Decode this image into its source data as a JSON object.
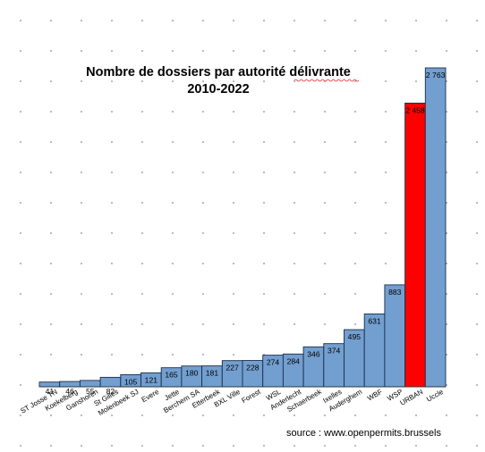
{
  "chart_data": {
    "type": "bar",
    "title": "Nombre de dossiers par autorité délivrante",
    "subtitle": "2010-2022",
    "categories": [
      "ST Josse TN",
      "Koekelberg",
      "Ganshoren",
      "St Gilles",
      "Molenbeek SJ",
      "Evere",
      "Jette",
      "Berchem SA",
      "Etterbeek",
      "BXL Ville",
      "Forest",
      "WSL",
      "Anderlecht",
      "Schaerbeek",
      "Ixelles",
      "Auderghem",
      "WBF",
      "WSP",
      "URBAN",
      "Uccle"
    ],
    "values": [
      41,
      46,
      55,
      82,
      105,
      121,
      165,
      180,
      181,
      227,
      228,
      274,
      284,
      346,
      374,
      495,
      631,
      883,
      2458,
      2763
    ],
    "value_labels": [
      "41",
      "46",
      "55",
      "82",
      "105",
      "121",
      "165",
      "180",
      "181",
      "227",
      "228",
      "274",
      "284",
      "346",
      "374",
      "495",
      "631",
      "883",
      "2 458",
      "2 763"
    ],
    "bar_color": "#729fcf",
    "highlight_color": "#ff0000",
    "highlight_category": "URBAN",
    "grid": false,
    "legend": "none",
    "ylim": [
      0,
      2763
    ]
  },
  "source_note": "source : www.openpermits.brussels"
}
